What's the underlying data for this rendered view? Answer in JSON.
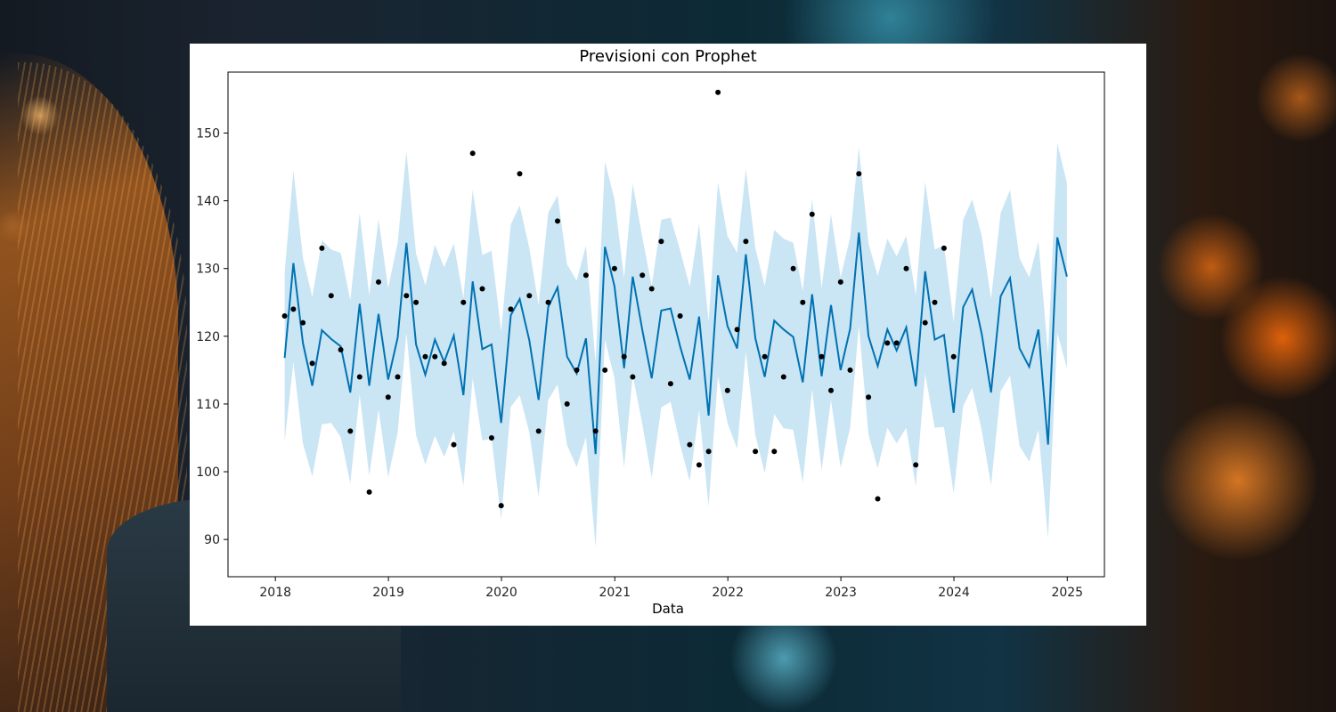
{
  "chart_data": {
    "type": "line",
    "title": "Previsioni con Prophet",
    "xlabel": "Data",
    "ylabel": "",
    "ylim": [
      84.5,
      159
    ],
    "xlim": [
      "2017-08-01",
      "2025-05-01"
    ],
    "x_ticks": [
      "2018",
      "2019",
      "2020",
      "2021",
      "2022",
      "2023",
      "2024",
      "2025"
    ],
    "y_ticks": [
      90,
      100,
      110,
      120,
      130,
      140,
      150
    ],
    "grid": false,
    "colors": {
      "forecast": "#0072b2",
      "band": "#a6d4ec",
      "observed": "#000000"
    },
    "series": [
      {
        "role": "forecast",
        "start": "2018-01",
        "values": [
          116.8,
          130.8,
          119.0,
          112.7,
          120.9,
          119.6,
          118.5,
          111.7,
          124.8,
          112.7,
          123.3,
          113.6,
          119.8,
          133.8,
          118.8,
          114.3,
          119.5,
          116.2,
          120.1,
          111.3,
          128.1,
          118.1,
          118.8,
          107.2,
          123.1,
          125.5,
          119.4,
          110.6,
          124.3,
          127.2,
          117.0,
          114.5,
          119.7,
          102.6,
          133.2,
          127.4,
          115.3,
          128.8,
          120.9,
          113.8,
          123.8,
          124.1,
          118.5,
          113.6,
          122.9,
          108.3,
          129.0,
          121.5,
          118.2,
          132.1,
          119.7,
          114.0,
          122.3,
          121.0,
          119.9,
          113.2,
          126.2,
          114.1,
          124.6,
          115.0,
          121.1,
          135.3,
          120.0,
          115.6,
          121.0,
          117.9,
          121.3,
          112.6,
          129.6,
          119.5,
          120.2,
          108.7,
          124.3,
          126.9,
          120.3,
          111.7,
          125.9,
          128.6,
          118.2,
          115.5,
          121.0,
          104.0,
          134.6,
          128.8
        ]
      },
      {
        "role": "forecast_lower",
        "start": "2018-01",
        "values": [
          104.4,
          116.2,
          104.2,
          99.3,
          107.0,
          107.2,
          105.1,
          98.3,
          111.4,
          99.4,
          109.2,
          99.2,
          105.8,
          120.5,
          105.4,
          101.1,
          105.3,
          102.2,
          105.9,
          97.9,
          113.8,
          104.6,
          104.9,
          93.0,
          109.6,
          111.3,
          105.8,
          96.3,
          110.6,
          112.9,
          103.9,
          100.7,
          105.1,
          88.8,
          119.5,
          113.8,
          100.6,
          114.3,
          107.0,
          99.1,
          109.5,
          110.3,
          104.0,
          98.6,
          109.1,
          94.9,
          114.1,
          107.2,
          103.4,
          117.7,
          105.4,
          99.8,
          108.5,
          106.4,
          106.2,
          98.4,
          112.2,
          100.2,
          110.6,
          100.6,
          106.5,
          121.6,
          105.5,
          100.5,
          106.5,
          104.2,
          106.5,
          97.8,
          114.5,
          106.5,
          106.6,
          96.8,
          109.7,
          112.4,
          106.1,
          98.0,
          111.9,
          114.2,
          103.8,
          101.5,
          106.2,
          90.1,
          120.5,
          115.3
        ]
      },
      {
        "role": "forecast_upper",
        "start": "2018-01",
        "values": [
          129.4,
          144.5,
          131.6,
          125.8,
          134.2,
          132.8,
          132.3,
          125.3,
          138.2,
          126.0,
          137.3,
          127.1,
          133.8,
          147.3,
          132.2,
          127.5,
          133.5,
          130.2,
          133.7,
          125.6,
          141.6,
          132.0,
          132.6,
          120.7,
          136.5,
          139.3,
          133.0,
          124.6,
          138.2,
          140.8,
          130.6,
          128.2,
          133.4,
          116.1,
          145.8,
          140.2,
          128.6,
          142.5,
          134.6,
          127.4,
          137.2,
          137.5,
          132.7,
          127.3,
          136.6,
          122.1,
          142.7,
          134.8,
          132.3,
          144.7,
          133.0,
          127.4,
          135.7,
          134.4,
          133.8,
          126.7,
          140.3,
          127.1,
          138.0,
          128.7,
          134.6,
          147.9,
          133.7,
          128.9,
          134.4,
          131.8,
          134.8,
          126.0,
          142.8,
          132.8,
          133.4,
          122.1,
          137.2,
          140.2,
          134.8,
          125.5,
          138.2,
          141.6,
          131.5,
          128.7,
          134.0,
          117.4,
          148.5,
          142.6
        ]
      },
      {
        "role": "observed",
        "start": "2018-01",
        "values": [
          123,
          124,
          122,
          116,
          133,
          126,
          118,
          106,
          114,
          97,
          128,
          111,
          114,
          126,
          125,
          117,
          117,
          116,
          104,
          125,
          147,
          127,
          105,
          95,
          124,
          144,
          126,
          106,
          125,
          137,
          110,
          115,
          129,
          106,
          115,
          130,
          117,
          114,
          129,
          127,
          134,
          113,
          123,
          104,
          101,
          103,
          156,
          112,
          121,
          134,
          103,
          117,
          103,
          114,
          130,
          125,
          138,
          117,
          112,
          128,
          115,
          144,
          111,
          96,
          119,
          119,
          130,
          101,
          122,
          125,
          133,
          117
        ]
      }
    ]
  }
}
